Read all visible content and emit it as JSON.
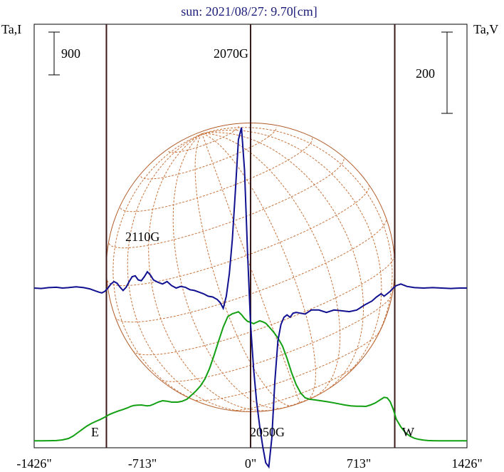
{
  "chart_data": {
    "type": "line",
    "title": "sun: 2021/08/27: 9.70[cm]",
    "left_axis_label": "Ta,I",
    "right_axis_label": "Ta,V",
    "x_ticks": [
      "-1426\"",
      "-713\"",
      "0\"",
      "713\"",
      "1426\""
    ],
    "x_tick_values": [
      -1426,
      -713,
      0,
      713,
      1426
    ],
    "xlim": [
      -1426,
      1426
    ],
    "limb_labels": {
      "east": "E",
      "west": "W"
    },
    "limb_x": [
      -950,
      950
    ],
    "scale_bar_I": "900",
    "scale_bar_V": "200",
    "annotations": [
      {
        "text": "2070G",
        "x": -80
      },
      {
        "text": "2110G",
        "x": -700
      },
      {
        "text": "2050G",
        "x": 100
      }
    ],
    "colors": {
      "I": "#12a012",
      "V": "#101090",
      "limb_lines": "#3a1a1a",
      "disk": "#b05a28",
      "grid": "#c8743c"
    },
    "series": [
      {
        "key": "I",
        "color": "#12a012",
        "x": [
          -1426,
          -1380,
          -1330,
          -1280,
          -1240,
          -1200,
          -1170,
          -1140,
          -1110,
          -1080,
          -1050,
          -1020,
          -990,
          -960,
          -930,
          -900,
          -870,
          -840,
          -810,
          -790,
          -770,
          -745,
          -720,
          -700,
          -680,
          -660,
          -640,
          -610,
          -580,
          -550,
          -520,
          -480,
          -450,
          -420,
          -390,
          -360,
          -330,
          -300,
          -270,
          -240,
          -210,
          -180,
          -150,
          -120,
          -100,
          -80,
          -60,
          -40,
          -20,
          0,
          20,
          40,
          60,
          80,
          100,
          120,
          150,
          180,
          210,
          240,
          270,
          300,
          330,
          360,
          390,
          420,
          460,
          500,
          540,
          580,
          620,
          660,
          700,
          730,
          760,
          790,
          820,
          840,
          860,
          880,
          900,
          920,
          940,
          960,
          990,
          1020,
          1050,
          1080,
          1110,
          1140,
          1170,
          1200,
          1240,
          1280,
          1330,
          1380,
          1426
        ],
        "y": [
          25,
          25,
          28,
          32,
          45,
          75,
          125,
          195,
          265,
          335,
          390,
          435,
          475,
          525,
          580,
          620,
          655,
          685,
          720,
          750,
          770,
          775,
          780,
          770,
          760,
          770,
          795,
          840,
          870,
          860,
          840,
          840,
          860,
          900,
          985,
          1075,
          1180,
          1330,
          1550,
          1830,
          2130,
          2420,
          2640,
          2700,
          2720,
          2740,
          2680,
          2600,
          2540,
          2520,
          2490,
          2520,
          2550,
          2530,
          2500,
          2430,
          2320,
          2190,
          2020,
          1760,
          1460,
          1210,
          1030,
          930,
          900,
          890,
          870,
          850,
          830,
          805,
          780,
          760,
          755,
          755,
          750,
          780,
          820,
          860,
          900,
          940,
          930,
          850,
          690,
          480,
          320,
          200,
          125,
          80,
          55,
          40,
          32,
          28,
          26,
          25,
          25,
          25,
          25
        ]
      },
      {
        "key": "V",
        "color": "#101090",
        "x": [
          -1426,
          -1380,
          -1330,
          -1280,
          -1240,
          -1200,
          -1150,
          -1100,
          -1060,
          -1030,
          -1000,
          -980,
          -960,
          -940,
          -920,
          -900,
          -880,
          -860,
          -840,
          -820,
          -800,
          -780,
          -760,
          -740,
          -720,
          -700,
          -680,
          -660,
          -640,
          -610,
          -580,
          -550,
          -520,
          -490,
          -460,
          -430,
          -400,
          -370,
          -340,
          -310,
          -280,
          -250,
          -220,
          -200,
          -180,
          -160,
          -140,
          -120,
          -100,
          -80,
          -60,
          -40,
          -20,
          0,
          20,
          40,
          60,
          80,
          100,
          120,
          140,
          160,
          180,
          200,
          220,
          240,
          260,
          280,
          300,
          330,
          360,
          400,
          450,
          500,
          550,
          600,
          650,
          700,
          750,
          800,
          830,
          860,
          880,
          900,
          920,
          940,
          960,
          990,
          1030,
          1080,
          1140,
          1200,
          1260,
          1320,
          1380,
          1426
        ],
        "y": [
          0,
          -1,
          1,
          2,
          0,
          1,
          3,
          1,
          -2,
          -6,
          -10,
          -12,
          -8,
          0,
          10,
          16,
          12,
          2,
          -6,
          2,
          16,
          28,
          30,
          20,
          18,
          28,
          40,
          32,
          20,
          14,
          10,
          16,
          6,
          0,
          4,
          2,
          -4,
          -6,
          -10,
          -14,
          -20,
          -22,
          -28,
          -36,
          -50,
          -20,
          36,
          120,
          240,
          365,
          395,
          290,
          90,
          -90,
          -200,
          -280,
          -340,
          -390,
          -430,
          -440,
          -370,
          -230,
          -130,
          -90,
          -72,
          -66,
          -72,
          -62,
          -60,
          -62,
          -64,
          -54,
          -54,
          -60,
          -54,
          -56,
          -58,
          -54,
          -42,
          -32,
          -22,
          -14,
          -20,
          -14,
          -8,
          0,
          6,
          10,
          4,
          1,
          0,
          1,
          0,
          -1,
          0,
          0
        ]
      }
    ]
  }
}
